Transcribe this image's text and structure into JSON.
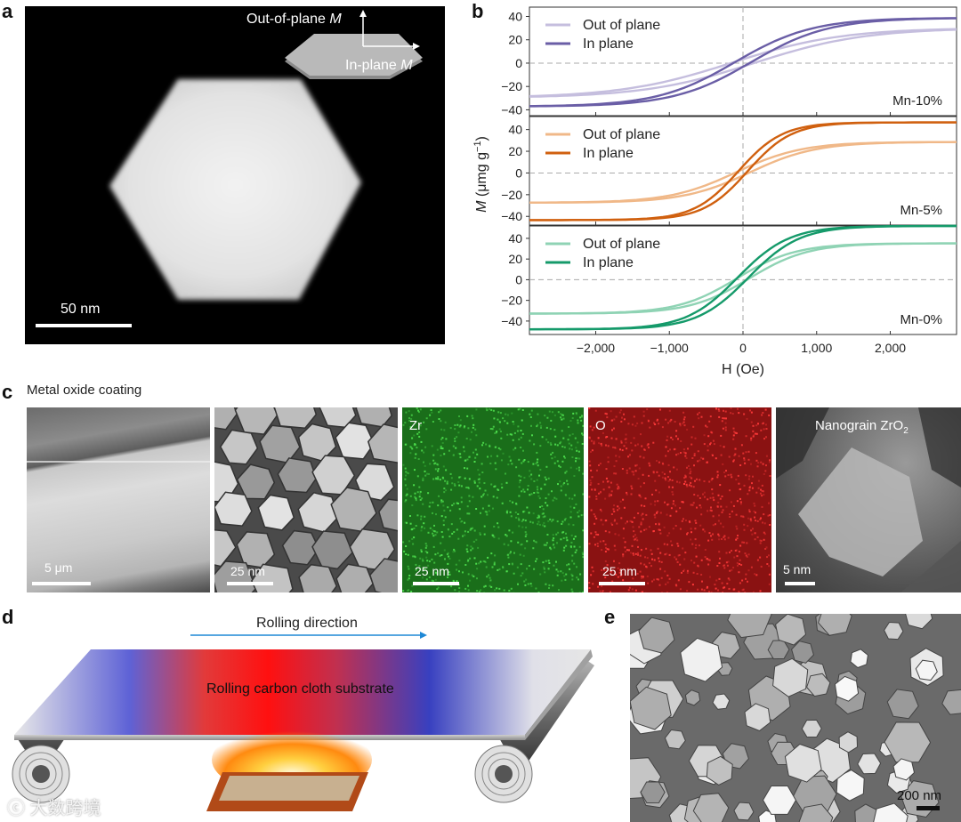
{
  "panels": {
    "a": "a",
    "b": "b",
    "c": "c",
    "d": "d",
    "e": "e"
  },
  "panel_a": {
    "out_of_plane": "Out-of-plane",
    "in_plane": "In-plane",
    "symbol": "M",
    "scale": "50 nm"
  },
  "chart_data": {
    "type": "line",
    "xlabel": "H (Oe)",
    "ylabel_symbol": "M",
    "ylabel_units": "(μmg g",
    "ylabel_exp": "−1",
    "ylabel_close": ")",
    "xlim": [
      -2900,
      2900
    ],
    "xticks": [
      "−2,000",
      "−1,000",
      "0",
      "1,000",
      "2,000"
    ],
    "xtick_values": [
      -2000,
      -1000,
      0,
      1000,
      2000
    ],
    "subplots": [
      {
        "label": "Mn-10%",
        "ylim": [
          -45,
          48
        ],
        "yticks": [
          "40",
          "20",
          "0",
          "−20",
          "−40"
        ],
        "ytick_values": [
          40,
          20,
          0,
          -20,
          -40
        ],
        "series": [
          {
            "name": "Out of plane",
            "color": "#c5bede",
            "Ms": 30,
            "Mr": 1,
            "width": 1500
          },
          {
            "name": "In plane",
            "color": "#6a5ea6",
            "Ms": 38,
            "Mr": 4,
            "width": 1050
          }
        ]
      },
      {
        "label": "Mn-5%",
        "ylim": [
          -48,
          52
        ],
        "yticks": [
          "40",
          "20",
          "0",
          "−20",
          "−40"
        ],
        "ytick_values": [
          40,
          20,
          0,
          -20,
          -40
        ],
        "series": [
          {
            "name": "Out of plane",
            "color": "#f0b888",
            "Ms": 28,
            "Mr": 3,
            "width": 900
          },
          {
            "name": "In plane",
            "color": "#d0600f",
            "Ms": 45,
            "Mr": 8,
            "width": 600
          }
        ]
      },
      {
        "label": "Mn-0%",
        "ylim": [
          -53,
          52
        ],
        "yticks": [
          "40",
          "20",
          "0",
          "−20",
          "−40"
        ],
        "ytick_values": [
          40,
          20,
          0,
          -20,
          -40
        ],
        "series": [
          {
            "name": "Out of plane",
            "color": "#8fd3b4",
            "Ms": 34,
            "Mr": 6,
            "width": 800
          },
          {
            "name": "In plane",
            "color": "#159a6a",
            "Ms": 50,
            "Mr": 10,
            "width": 700
          }
        ]
      }
    ]
  },
  "panel_c": {
    "title": "Metal oxide coating",
    "scales": [
      "5 μm",
      "25 nm",
      "25 nm",
      "25 nm",
      "5 nm"
    ],
    "element_zr": "Zr",
    "element_o": "O",
    "nanograin_prefix": "Nanograin ZrO",
    "nanograin_sub": "2"
  },
  "panel_d": {
    "direction": "Rolling direction",
    "substrate": "Rolling carbon cloth substrate"
  },
  "panel_e": {
    "scale": "200 nm"
  },
  "watermark": "大数跨境"
}
